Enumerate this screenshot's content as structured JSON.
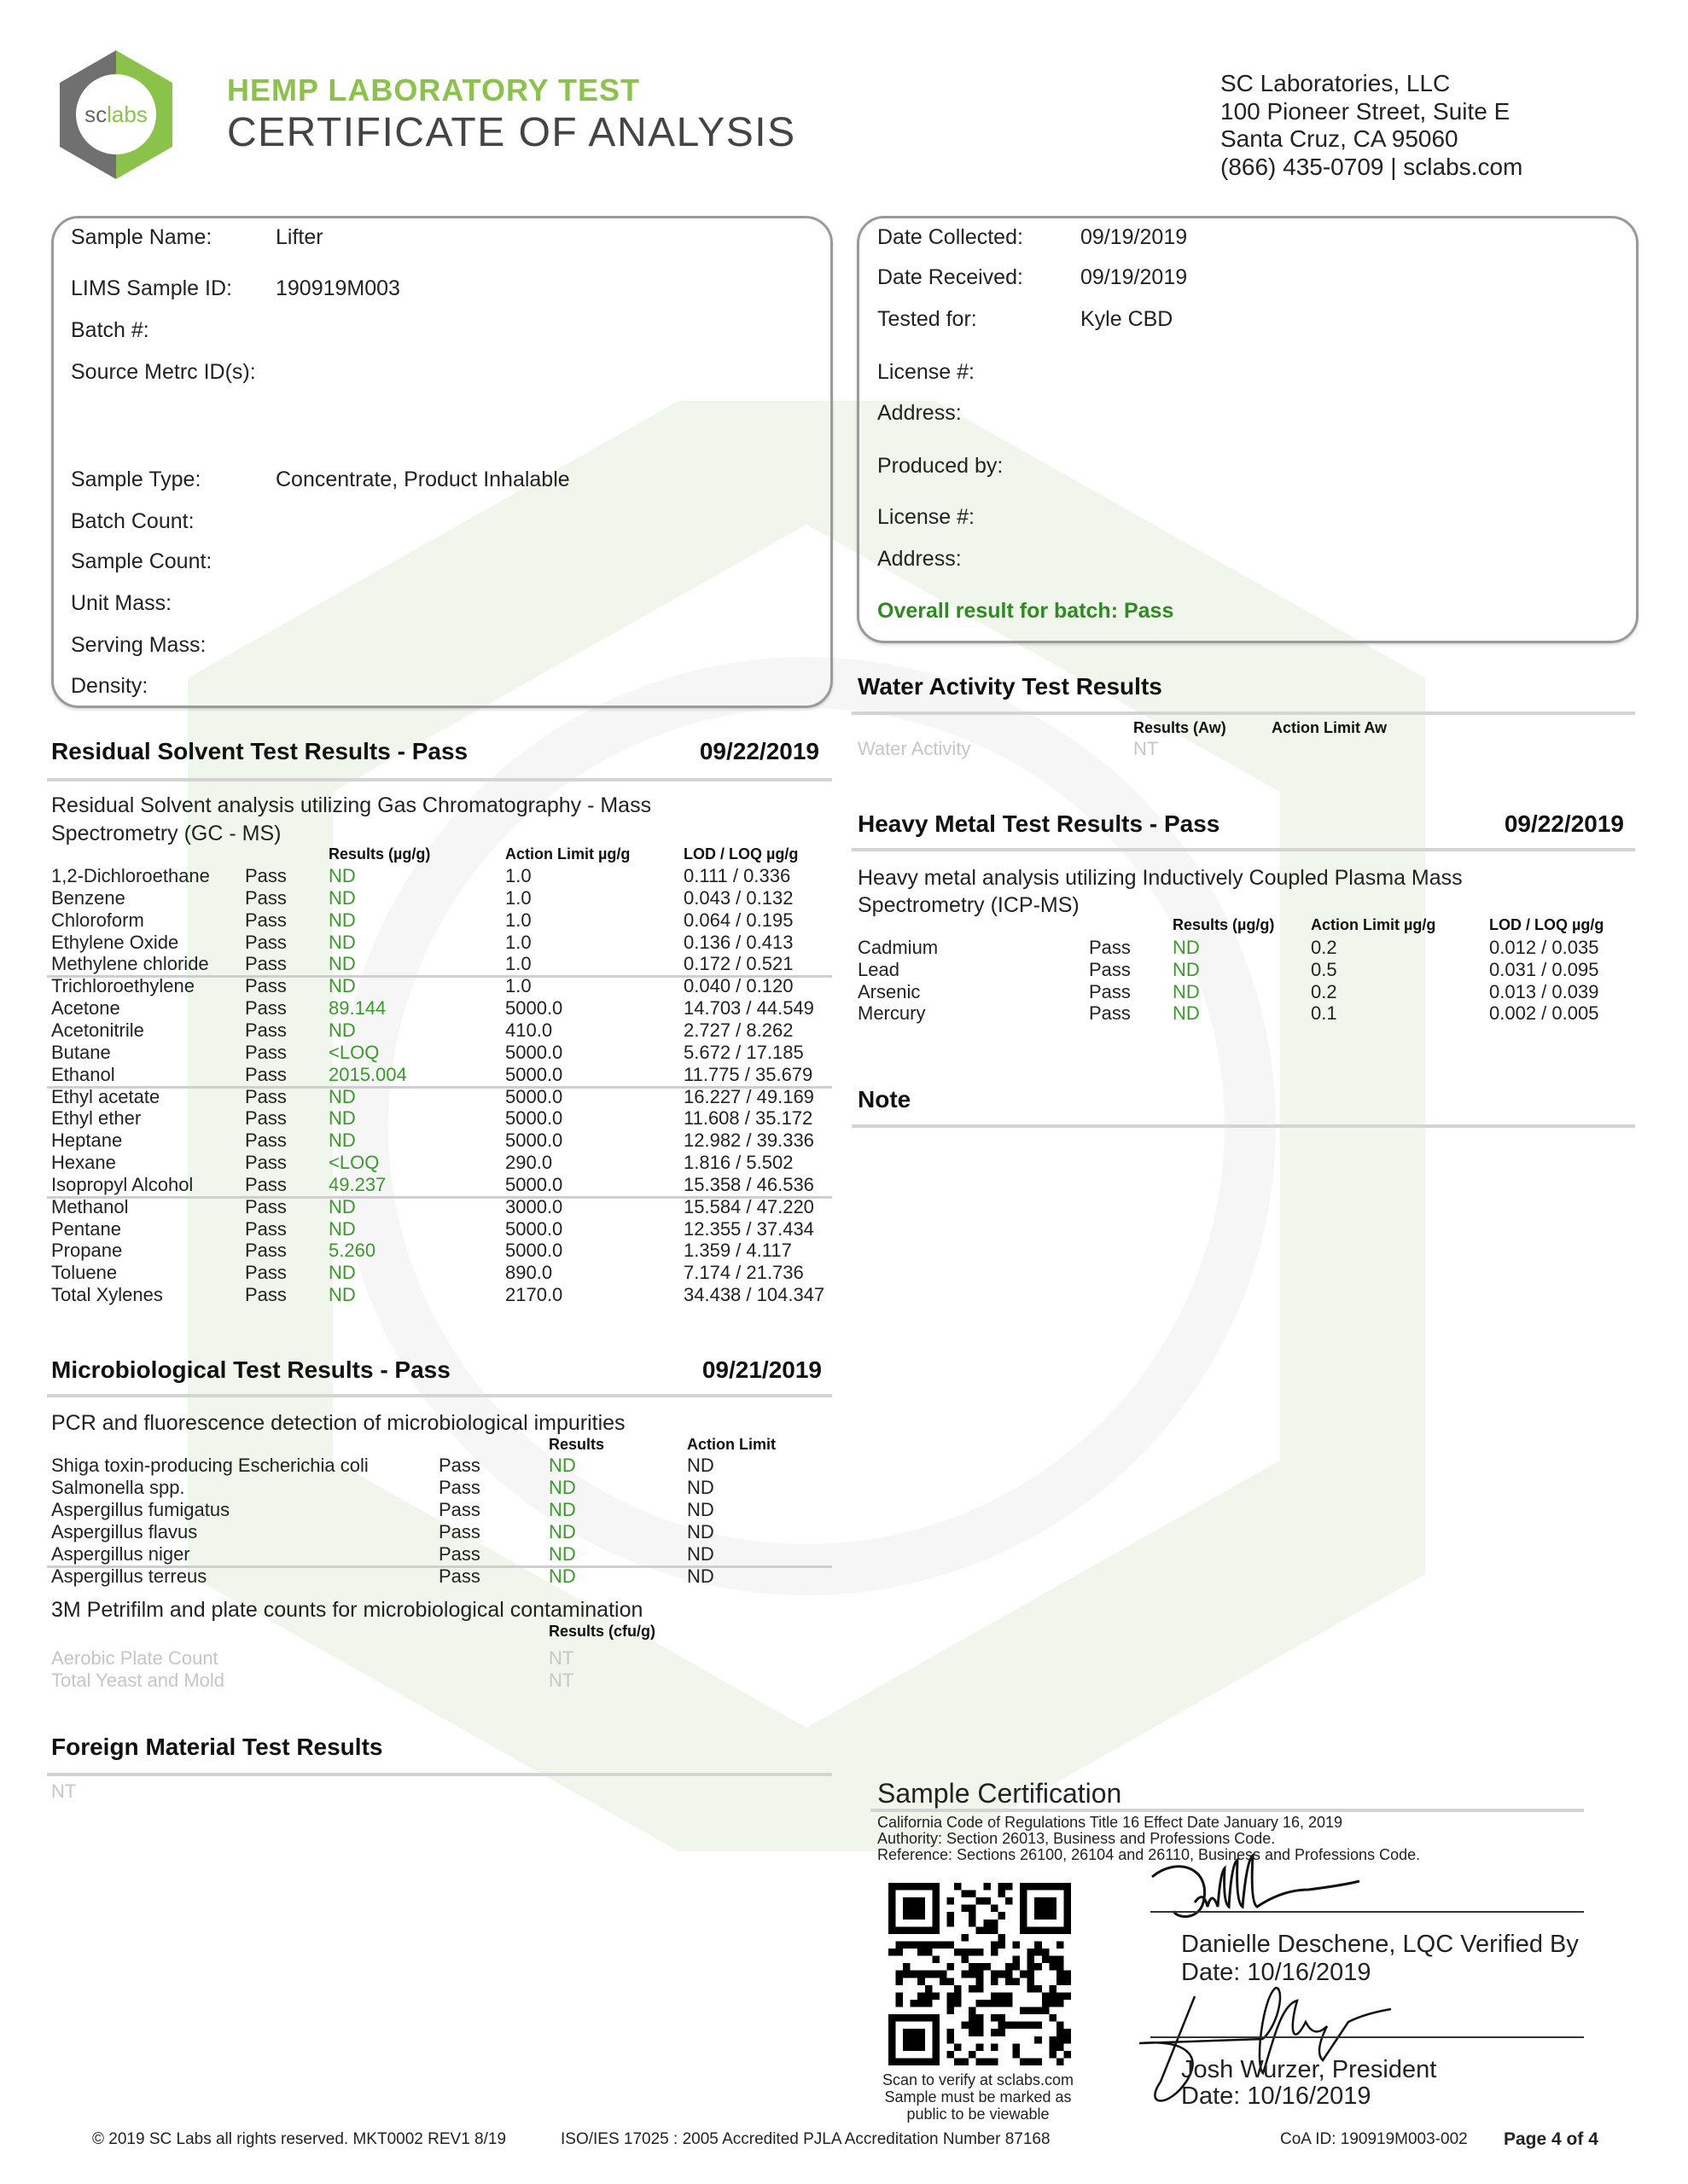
{
  "header": {
    "logo_text": "sclabs",
    "subtitle": "HEMP LABORATORY TEST",
    "title": "CERTIFICATE OF ANALYSIS",
    "address": [
      "SC Laboratories, LLC",
      "100 Pioneer Street, Suite E",
      "Santa Cruz, CA 95060",
      "(866) 435-0709  |  sclabs.com"
    ]
  },
  "colors": {
    "brand_green": "#8bc34a",
    "result_green": "#3a9a2a",
    "logo_gray": "#707070"
  },
  "sample_info": [
    {
      "label": "Sample Name:",
      "value": "Lifter"
    },
    {
      "label": "LIMS Sample ID:",
      "value": "190919M003"
    },
    {
      "label": "Batch #:",
      "value": ""
    },
    {
      "label": "Source Metrc ID(s):",
      "value": ""
    },
    {
      "label": "Sample Type:",
      "value": "Concentrate, Product Inhalable"
    },
    {
      "label": "Batch Count:",
      "value": ""
    },
    {
      "label": "Sample Count:",
      "value": ""
    },
    {
      "label": "Unit Mass:",
      "value": ""
    },
    {
      "label": "Serving Mass:",
      "value": ""
    },
    {
      "label": "Density:",
      "value": ""
    }
  ],
  "client_info": [
    {
      "label": "Date Collected:",
      "value": "09/19/2019"
    },
    {
      "label": "Date Received:",
      "value": "09/19/2019"
    },
    {
      "label": "Tested for:",
      "value": "Kyle CBD"
    },
    {
      "label": "License #:",
      "value": ""
    },
    {
      "label": "Address:",
      "value": ""
    },
    {
      "label": "Produced by:",
      "value": ""
    },
    {
      "label": "License #:",
      "value": ""
    },
    {
      "label": "Address:",
      "value": ""
    }
  ],
  "overall_result": "Overall result for batch: Pass",
  "residual_solvent": {
    "title": "Residual Solvent Test Results - Pass",
    "date": "09/22/2019",
    "description": [
      "Residual Solvent analysis utilizing Gas Chromatography - Mass",
      "Spectrometry (GC - MS)"
    ],
    "columns": [
      "Results (µg/g)",
      "Action Limit µg/g",
      "LOD / LOQ µg/g"
    ],
    "rows": [
      [
        "1,2-Dichloroethane",
        "Pass",
        "ND",
        "1.0",
        "0.111 / 0.336"
      ],
      [
        "Benzene",
        "Pass",
        "ND",
        "1.0",
        "0.043 / 0.132"
      ],
      [
        "Chloroform",
        "Pass",
        "ND",
        "1.0",
        "0.064 / 0.195"
      ],
      [
        "Ethylene Oxide",
        "Pass",
        "ND",
        "1.0",
        "0.136 / 0.413"
      ],
      [
        "Methylene chloride",
        "Pass",
        "ND",
        "1.0",
        "0.172 / 0.521"
      ],
      [
        "Trichloroethylene",
        "Pass",
        "ND",
        "1.0",
        "0.040 / 0.120"
      ],
      [
        "Acetone",
        "Pass",
        "89.144",
        "5000.0",
        "14.703 / 44.549"
      ],
      [
        "Acetonitrile",
        "Pass",
        "ND",
        "410.0",
        "2.727 / 8.262"
      ],
      [
        "Butane",
        "Pass",
        "<LOQ",
        "5000.0",
        "5.672 / 17.185"
      ],
      [
        "Ethanol",
        "Pass",
        "2015.004",
        "5000.0",
        "11.775 / 35.679"
      ],
      [
        "Ethyl acetate",
        "Pass",
        "ND",
        "5000.0",
        "16.227 / 49.169"
      ],
      [
        "Ethyl ether",
        "Pass",
        "ND",
        "5000.0",
        "11.608 / 35.172"
      ],
      [
        "Heptane",
        "Pass",
        "ND",
        "5000.0",
        "12.982 / 39.336"
      ],
      [
        "Hexane",
        "Pass",
        "<LOQ",
        "290.0",
        "1.816 / 5.502"
      ],
      [
        "Isopropyl Alcohol",
        "Pass",
        "49.237",
        "5000.0",
        "15.358 / 46.536"
      ],
      [
        "Methanol",
        "Pass",
        "ND",
        "3000.0",
        "15.584 / 47.220"
      ],
      [
        "Pentane",
        "Pass",
        "ND",
        "5000.0",
        "12.355 / 37.434"
      ],
      [
        "Propane",
        "Pass",
        "5.260",
        "5000.0",
        "1.359 / 4.117"
      ],
      [
        "Toluene",
        "Pass",
        "ND",
        "890.0",
        "7.174 / 21.736"
      ],
      [
        "Total Xylenes",
        "Pass",
        "ND",
        "2170.0",
        "34.438 / 104.347"
      ]
    ]
  },
  "microbiological": {
    "title": "Microbiological Test Results - Pass",
    "date": "09/21/2019",
    "description": "PCR and fluorescence detection of microbiological impurities",
    "columns": [
      "Results",
      "Action Limit"
    ],
    "rows": [
      [
        "Shiga toxin-producing Escherichia coli",
        "Pass",
        "ND",
        "ND"
      ],
      [
        "Salmonella spp.",
        "Pass",
        "ND",
        "ND"
      ],
      [
        "Aspergillus fumigatus",
        "Pass",
        "ND",
        "ND"
      ],
      [
        "Aspergillus flavus",
        "Pass",
        "ND",
        "ND"
      ],
      [
        "Aspergillus niger",
        "Pass",
        "ND",
        "ND"
      ],
      [
        "Aspergillus terreus",
        "Pass",
        "ND",
        "ND"
      ]
    ],
    "plate_description": "3M Petrifilm and plate counts for microbiological contamination",
    "plate_column": "Results (cfu/g)",
    "plate_rows": [
      [
        "Aerobic Plate Count",
        "NT"
      ],
      [
        "Total Yeast and Mold",
        "NT"
      ]
    ]
  },
  "foreign_material": {
    "title": "Foreign Material Test Results",
    "result": "NT"
  },
  "water_activity": {
    "title": "Water Activity Test Results",
    "columns": [
      "Results (Aw)",
      "Action Limit Aw"
    ],
    "row": [
      "Water Activity",
      "NT"
    ]
  },
  "heavy_metal": {
    "title": "Heavy Metal Test Results - Pass",
    "date": "09/22/2019",
    "description": [
      "Heavy metal analysis utilizing Inductively Coupled Plasma Mass",
      "Spectrometry (ICP-MS)"
    ],
    "columns": [
      "Results (µg/g)",
      "Action Limit µg/g",
      "LOD / LOQ µg/g"
    ],
    "rows": [
      [
        "Cadmium",
        "Pass",
        "ND",
        "0.2",
        "0.012 / 0.035"
      ],
      [
        "Lead",
        "Pass",
        "ND",
        "0.5",
        "0.031 / 0.095"
      ],
      [
        "Arsenic",
        "Pass",
        "ND",
        "0.2",
        "0.013 / 0.039"
      ],
      [
        "Mercury",
        "Pass",
        "ND",
        "0.1",
        "0.002 / 0.005"
      ]
    ]
  },
  "note": {
    "title": "Note"
  },
  "certification": {
    "title": "Sample Certification",
    "regulations": [
      "California Code of Regulations Title 16 Effect Date January 16, 2019",
      "Authority: Section 26013, Business and Professions Code.",
      "Reference: Sections 26100, 26104 and 26110, Business and Professions Code."
    ],
    "qr_caption": [
      "Scan to verify at sclabs.com",
      "Sample must be marked as",
      "public to be viewable"
    ],
    "signers": [
      {
        "name": "Danielle Deschene, LQC Verified By",
        "date": "Date: 10/16/2019"
      },
      {
        "name": "Josh Wurzer, President",
        "date": "Date: 10/16/2019"
      }
    ]
  },
  "footer": {
    "copyright": "© 2019 SC Labs all rights reserved. MKT0002 REV1 8/19",
    "accreditation": "ISO/IES 17025 : 2005 Accredited PJLA Accreditation Number 87168",
    "coa_id": "CoA ID: 190919M003-002",
    "page": "Page 4 of 4"
  }
}
